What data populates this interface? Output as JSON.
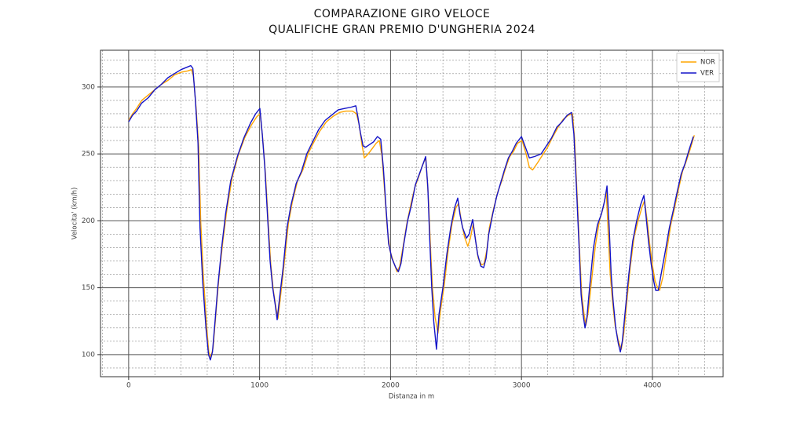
{
  "chart_data": {
    "type": "line",
    "title": [
      "COMPARAZIONE GIRO VELOCE",
      "QUALIFICHE GRAN PREMIO D'UNGHERIA 2024"
    ],
    "xlabel": "Distanza in m",
    "ylabel": "Velocita' (km/h)",
    "xlim": [
      -215,
      4540
    ],
    "ylim": [
      83.5,
      327.5
    ],
    "xticks": [
      0,
      1000,
      2000,
      3000,
      4000
    ],
    "yticks": [
      100,
      150,
      200,
      250,
      300
    ],
    "xminorticks": [
      -200,
      200,
      400,
      600,
      800,
      1200,
      1400,
      1600,
      1800,
      2200,
      2400,
      2600,
      2800,
      3200,
      3400,
      3600,
      3800,
      4200,
      4400
    ],
    "yminorticks": [
      90,
      110,
      120,
      130,
      140,
      160,
      170,
      180,
      190,
      210,
      220,
      230,
      240,
      260,
      270,
      280,
      290,
      310,
      320
    ],
    "grid": true,
    "minor_grid": true,
    "legend": "upper right",
    "series": [
      {
        "name": "NOR",
        "color": "#ffa500",
        "x": [
          0,
          30,
          60,
          100,
          150,
          200,
          250,
          300,
          350,
          400,
          450,
          480,
          495,
          515,
          535,
          550,
          570,
          595,
          612,
          628,
          645,
          670,
          690,
          720,
          750,
          790,
          840,
          890,
          940,
          980,
          1005,
          1025,
          1045,
          1065,
          1085,
          1105,
          1125,
          1140,
          1158,
          1190,
          1220,
          1250,
          1290,
          1330,
          1370,
          1410,
          1460,
          1510,
          1560,
          1610,
          1660,
          1710,
          1740,
          1760,
          1780,
          1800,
          1830,
          1860,
          1890,
          1915,
          1935,
          1955,
          1975,
          1995,
          2020,
          2050,
          2070,
          2095,
          2125,
          2155,
          2185,
          2215,
          2245,
          2270,
          2290,
          2305,
          2320,
          2340,
          2362,
          2380,
          2410,
          2440,
          2470,
          2500,
          2520,
          2540,
          2565,
          2590,
          2610,
          2632,
          2650,
          2670,
          2695,
          2715,
          2735,
          2755,
          2790,
          2820,
          2850,
          2880,
          2910,
          2940,
          2970,
          3005,
          3035,
          3060,
          3085,
          3120,
          3160,
          3200,
          3240,
          3280,
          3320,
          3360,
          3390,
          3405,
          3425,
          3445,
          3460,
          3478,
          3492,
          3510,
          3535,
          3565,
          3595,
          3625,
          3648,
          3663,
          3678,
          3695,
          3715,
          3740,
          3762,
          3780,
          3800,
          3830,
          3860,
          3890,
          3920,
          3940,
          3960,
          3980,
          4000,
          4020,
          4040,
          4055,
          4080,
          4110,
          4140,
          4170,
          4200,
          4230,
          4260,
          4290,
          4320
        ],
        "values": [
          275,
          280,
          284,
          290,
          294,
          298,
          302,
          305,
          309,
          311,
          312,
          313,
          308,
          285,
          255,
          200,
          160,
          122,
          102,
          98,
          105,
          135,
          158,
          185,
          208,
          232,
          250,
          263,
          272,
          278,
          280,
          260,
          235,
          200,
          168,
          148,
          135,
          127,
          142,
          170,
          198,
          214,
          230,
          238,
          250,
          258,
          267,
          274,
          278,
          281,
          282,
          282,
          280,
          272,
          258,
          247,
          250,
          254,
          258,
          260,
          248,
          222,
          195,
          178,
          170,
          162,
          166,
          180,
          198,
          212,
          225,
          233,
          242,
          247,
          215,
          180,
          150,
          128,
          116,
          132,
          152,
          178,
          198,
          210,
          213,
          200,
          188,
          181,
          187,
          198,
          185,
          172,
          167,
          168,
          178,
          195,
          210,
          222,
          230,
          240,
          248,
          252,
          258,
          260,
          250,
          240,
          238,
          243,
          249,
          255,
          263,
          270,
          276,
          279,
          280,
          262,
          220,
          175,
          145,
          130,
          122,
          132,
          155,
          182,
          200,
          210,
          222,
          190,
          160,
          140,
          122,
          110,
          104,
          115,
          135,
          165,
          188,
          200,
          210,
          215,
          200,
          182,
          167,
          155,
          150,
          148,
          158,
          178,
          197,
          210,
          224,
          237,
          245,
          254,
          264
        ]
      },
      {
        "name": "VER",
        "color": "#1414c8",
        "x": [
          0,
          30,
          60,
          100,
          150,
          200,
          250,
          300,
          350,
          400,
          450,
          474,
          490,
          510,
          530,
          545,
          565,
          590,
          610,
          624,
          640,
          660,
          680,
          710,
          740,
          780,
          830,
          880,
          930,
          970,
          1002,
          1020,
          1040,
          1060,
          1080,
          1100,
          1120,
          1134,
          1150,
          1180,
          1210,
          1240,
          1280,
          1320,
          1360,
          1400,
          1450,
          1500,
          1550,
          1600,
          1650,
          1700,
          1735,
          1750,
          1770,
          1790,
          1810,
          1840,
          1870,
          1900,
          1925,
          1945,
          1965,
          1985,
          2010,
          2040,
          2060,
          2080,
          2100,
          2130,
          2160,
          2190,
          2220,
          2250,
          2268,
          2285,
          2300,
          2315,
          2330,
          2351,
          2370,
          2400,
          2430,
          2460,
          2490,
          2513,
          2530,
          2550,
          2580,
          2600,
          2627,
          2645,
          2665,
          2690,
          2711,
          2730,
          2750,
          2780,
          2810,
          2840,
          2870,
          2900,
          2930,
          2960,
          3000,
          3030,
          3060,
          3100,
          3150,
          3190,
          3230,
          3270,
          3310,
          3350,
          3383,
          3400,
          3420,
          3440,
          3455,
          3470,
          3485,
          3500,
          3520,
          3550,
          3580,
          3610,
          3635,
          3653,
          3670,
          3685,
          3700,
          3720,
          3740,
          3755,
          3770,
          3790,
          3820,
          3850,
          3880,
          3910,
          3935,
          3950,
          3970,
          3990,
          4010,
          4025,
          4045,
          4070,
          4100,
          4130,
          4160,
          4190,
          4220,
          4250,
          4280,
          4313
        ],
        "values": [
          274,
          279,
          282,
          288,
          292,
          298,
          302,
          307,
          310,
          313,
          315,
          316,
          314,
          290,
          258,
          195,
          155,
          120,
          100,
          96,
          102,
          125,
          150,
          180,
          205,
          230,
          248,
          262,
          273,
          280,
          284,
          265,
          240,
          205,
          170,
          150,
          137,
          126,
          140,
          165,
          195,
          212,
          228,
          237,
          250,
          258,
          268,
          275,
          279,
          283,
          284,
          285,
          286,
          278,
          266,
          256,
          255,
          257,
          259,
          263,
          261,
          240,
          210,
          183,
          172,
          165,
          162,
          168,
          182,
          200,
          212,
          227,
          235,
          243,
          248,
          225,
          185,
          150,
          125,
          104,
          130,
          150,
          175,
          195,
          210,
          217,
          205,
          195,
          187,
          190,
          201,
          188,
          175,
          166,
          165,
          172,
          190,
          205,
          218,
          228,
          238,
          247,
          252,
          258,
          263,
          255,
          247,
          248,
          250,
          256,
          262,
          270,
          274,
          279,
          281,
          265,
          225,
          180,
          145,
          130,
          120,
          128,
          150,
          180,
          197,
          205,
          215,
          226,
          195,
          160,
          140,
          120,
          108,
          102,
          110,
          130,
          160,
          185,
          200,
          212,
          219,
          205,
          185,
          168,
          155,
          148,
          148,
          162,
          178,
          195,
          208,
          222,
          235,
          243,
          253,
          263
        ]
      }
    ]
  }
}
